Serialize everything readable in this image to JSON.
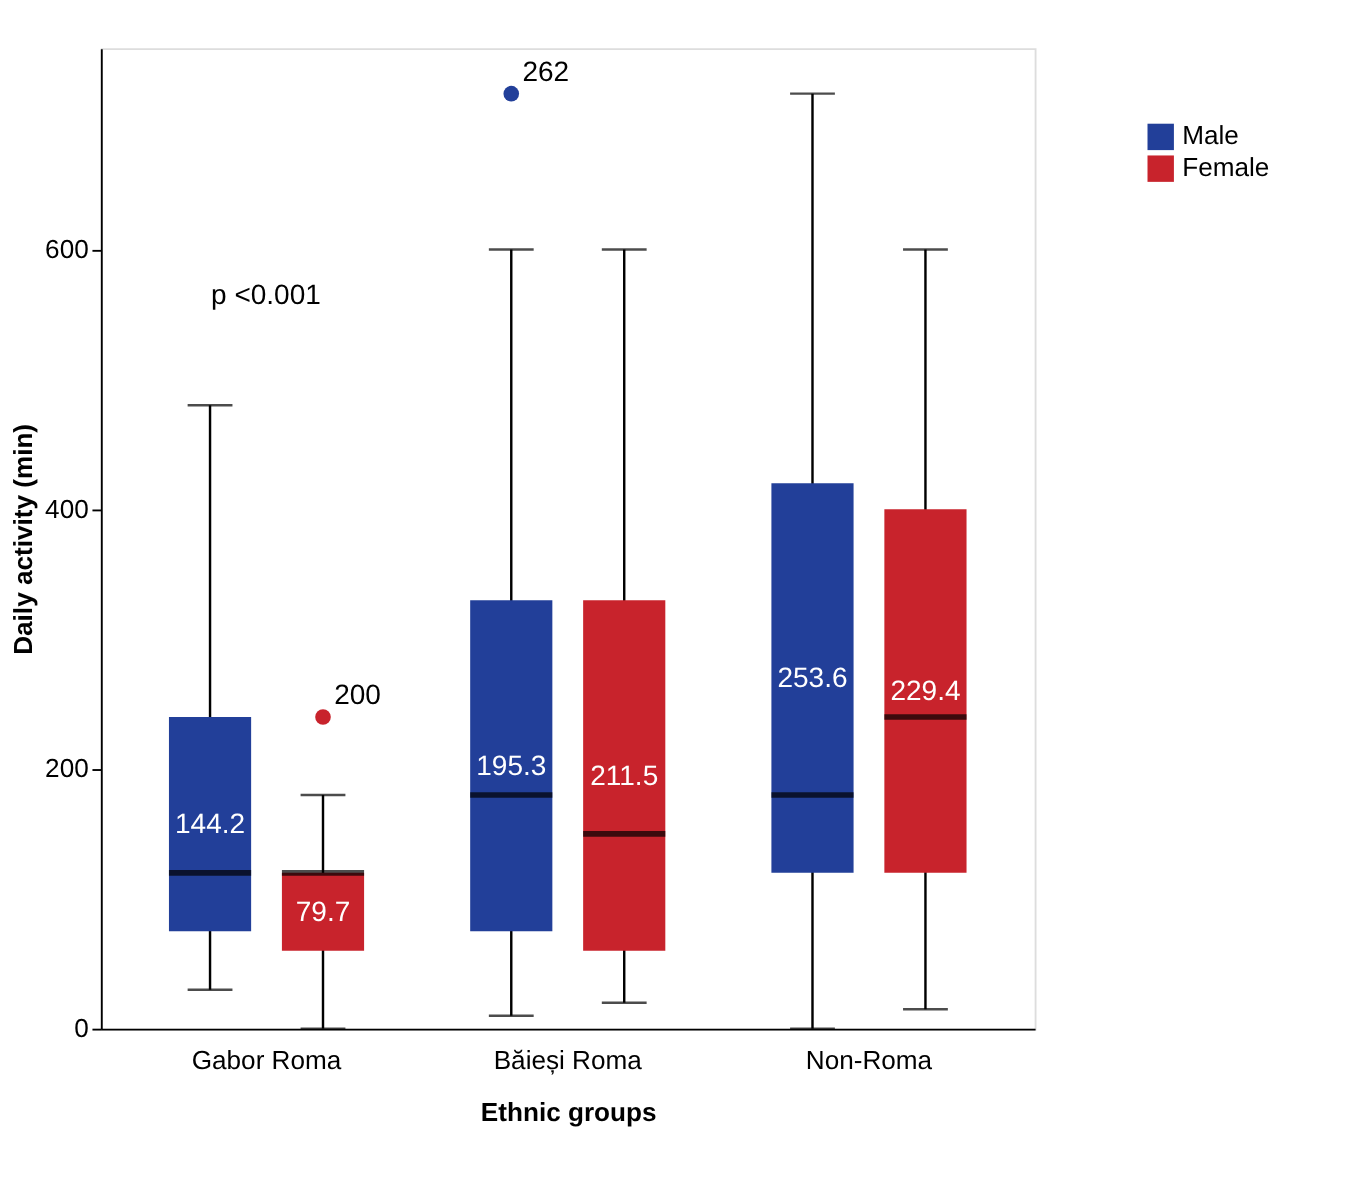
{
  "chart_data": {
    "type": "box",
    "xlabel": "Ethnic groups",
    "ylabel": "Daily activity (min)",
    "categories": [
      "Gabor Roma",
      "Băieși Roma",
      "Non-Roma"
    ],
    "series": [
      {
        "name": "Male",
        "color": "#223f99",
        "value_labels": [
          "144.2",
          "195.3",
          "253.6"
        ],
        "boxes": [
          {
            "low": 30,
            "q1": 75,
            "median": 120,
            "q3": 240,
            "high": 480
          },
          {
            "low": 10,
            "q1": 75,
            "median": 180,
            "q3": 330,
            "high": 600,
            "outliers": [
              720
            ]
          },
          {
            "low": 0,
            "q1": 120,
            "median": 180,
            "q3": 420,
            "high": 720
          }
        ]
      },
      {
        "name": "Female",
        "color": "#c8232c",
        "value_labels": [
          "79.7",
          "211.5",
          "229.4"
        ],
        "boxes": [
          {
            "low": 0,
            "q1": 60,
            "median": 120,
            "q3": 120,
            "high": 180,
            "outliers": [
              240
            ]
          },
          {
            "low": 20,
            "q1": 60,
            "median": 150,
            "q3": 330,
            "high": 600
          },
          {
            "low": 15,
            "q1": 120,
            "median": 240,
            "q3": 400,
            "high": 600
          }
        ]
      }
    ],
    "ylim": [
      0,
      755
    ],
    "yticks": [
      0,
      200,
      400,
      600
    ],
    "grid": false,
    "legend": "top right",
    "annotations": [
      "p <0.001",
      "262",
      "200"
    ]
  }
}
